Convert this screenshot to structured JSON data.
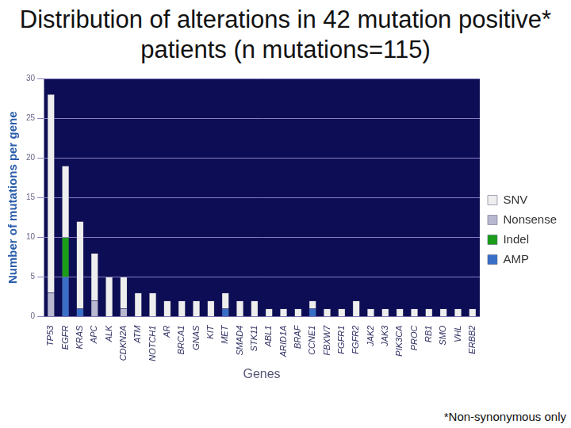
{
  "chart_data": {
    "type": "bar",
    "title": "Distribution of alterations in 42 mutation positive* patients (n mutations=115)",
    "x_label": "Genes",
    "y_label": "Number of mutations per gene",
    "footnote": "*Non-synonymous only",
    "categories": [
      "TP53",
      "EGFR",
      "KRAS",
      "APC",
      "ALK",
      "CDKN2A",
      "ATM",
      "NOTCH1",
      "AR",
      "BRCA1",
      "GNAS",
      "KIT",
      "MET",
      "SMAD4",
      "STK11",
      "ABL1",
      "ARID1A",
      "BRAF",
      "CCNE1",
      "FBXW7",
      "FGFR1",
      "FGFR2",
      "JAK2",
      "JAK3",
      "PIK3CA",
      "PROC",
      "RB1",
      "SMO",
      "VHL",
      "ERBB2"
    ],
    "series": [
      {
        "name": "SNV",
        "color": "#eeeeee",
        "values": [
          25,
          9,
          11,
          6,
          5,
          4,
          3,
          3,
          2,
          2,
          2,
          2,
          2,
          2,
          2,
          1,
          1,
          1,
          1,
          1,
          1,
          2,
          1,
          1,
          1,
          1,
          1,
          1,
          1,
          1
        ]
      },
      {
        "name": "Nonsense",
        "color": "#b8b8d0",
        "values": [
          3,
          0,
          0,
          2,
          0,
          1,
          0,
          0,
          0,
          0,
          0,
          0,
          0,
          0,
          0,
          0,
          0,
          0,
          0,
          0,
          0,
          0,
          0,
          0,
          0,
          0,
          0,
          0,
          0,
          0
        ]
      },
      {
        "name": "Indel",
        "color": "#1a9e1a",
        "values": [
          0,
          5,
          0,
          0,
          0,
          0,
          0,
          0,
          0,
          0,
          0,
          0,
          0,
          0,
          0,
          0,
          0,
          0,
          0,
          0,
          0,
          0,
          0,
          0,
          0,
          0,
          0,
          0,
          0,
          0
        ]
      },
      {
        "name": "AMP",
        "color": "#3a6fc8",
        "values": [
          0,
          5,
          1,
          0,
          0,
          0,
          0,
          0,
          0,
          0,
          0,
          0,
          1,
          0,
          0,
          0,
          0,
          0,
          1,
          0,
          0,
          0,
          0,
          0,
          0,
          0,
          0,
          0,
          0,
          0
        ]
      }
    ],
    "stacked": true,
    "legend": "right",
    "grid": true,
    "ylim": [
      0,
      30
    ],
    "yticks": [
      0,
      5,
      10,
      15,
      20,
      25,
      30
    ]
  }
}
